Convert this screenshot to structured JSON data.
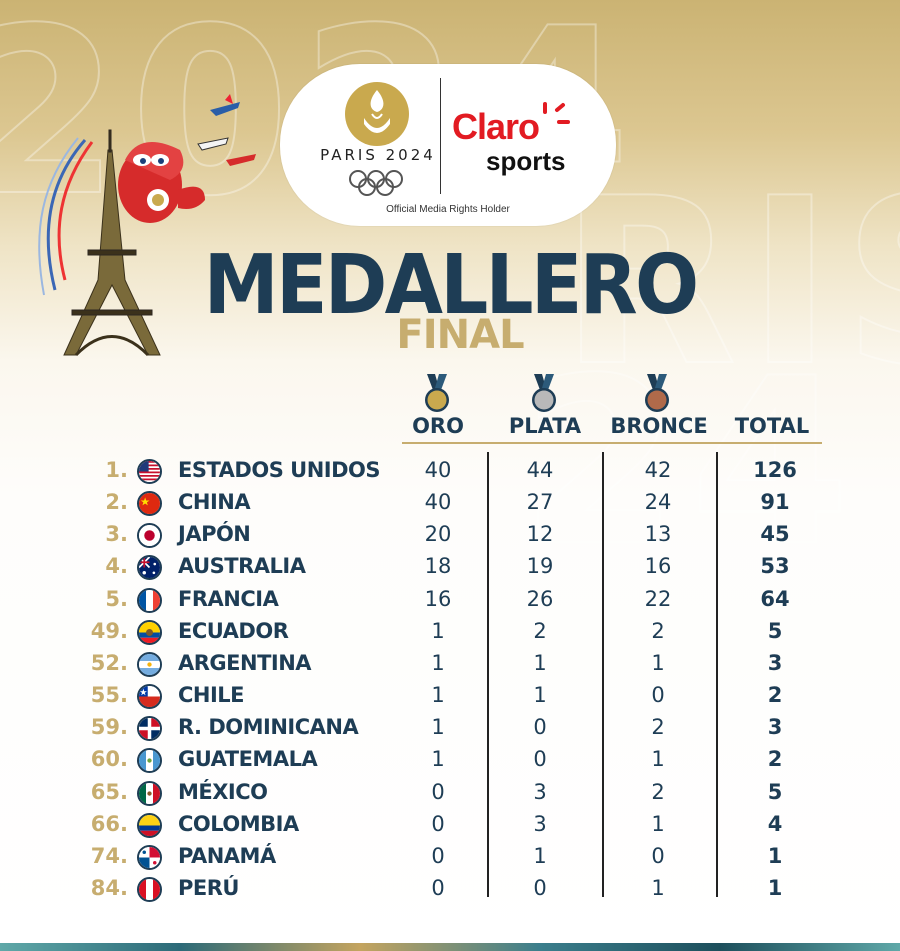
{
  "header": {
    "games_name": "PARIS 2024",
    "broadcaster_main": "Claro",
    "broadcaster_sub": "sports",
    "rights_text": "Official Media Rights Holder"
  },
  "title": "MEDALLERO",
  "subtitle": "FINAL",
  "columns": {
    "gold": "ORO",
    "silver": "PLATA",
    "bronze": "BRONCE",
    "total": "TOTAL"
  },
  "colors": {
    "navy": "#1e3d55",
    "gold_text": "#c7ad6f",
    "gold_medal": "#c9a94e",
    "silver_medal": "#b9b9b9",
    "bronze_medal": "#b06a4a"
  },
  "rows": [
    {
      "rank": "1.",
      "flag": "usa-flag-icon",
      "country": "ESTADOS UNIDOS",
      "gold": "40",
      "silver": "44",
      "bronze": "42",
      "total": "126"
    },
    {
      "rank": "2.",
      "flag": "china-flag-icon",
      "country": "CHINA",
      "gold": "40",
      "silver": "27",
      "bronze": "24",
      "total": "91"
    },
    {
      "rank": "3.",
      "flag": "japan-flag-icon",
      "country": "JAPÓN",
      "gold": "20",
      "silver": "12",
      "bronze": "13",
      "total": "45"
    },
    {
      "rank": "4.",
      "flag": "australia-flag-icon",
      "country": "AUSTRALIA",
      "gold": "18",
      "silver": "19",
      "bronze": "16",
      "total": "53"
    },
    {
      "rank": "5.",
      "flag": "france-flag-icon",
      "country": "FRANCIA",
      "gold": "16",
      "silver": "26",
      "bronze": "22",
      "total": "64"
    },
    {
      "rank": "49.",
      "flag": "ecuador-flag-icon",
      "country": "ECUADOR",
      "gold": "1",
      "silver": "2",
      "bronze": "2",
      "total": "5"
    },
    {
      "rank": "52.",
      "flag": "argentina-flag-icon",
      "country": "ARGENTINA",
      "gold": "1",
      "silver": "1",
      "bronze": "1",
      "total": "3"
    },
    {
      "rank": "55.",
      "flag": "chile-flag-icon",
      "country": "CHILE",
      "gold": "1",
      "silver": "1",
      "bronze": "0",
      "total": "2"
    },
    {
      "rank": "59.",
      "flag": "dominican-flag-icon",
      "country": "R. DOMINICANA",
      "gold": "1",
      "silver": "0",
      "bronze": "2",
      "total": "3"
    },
    {
      "rank": "60.",
      "flag": "guatemala-flag-icon",
      "country": "GUATEMALA",
      "gold": "1",
      "silver": "0",
      "bronze": "1",
      "total": "2"
    },
    {
      "rank": "65.",
      "flag": "mexico-flag-icon",
      "country": "MÉXICO",
      "gold": "0",
      "silver": "3",
      "bronze": "2",
      "total": "5"
    },
    {
      "rank": "66.",
      "flag": "colombia-flag-icon",
      "country": "COLOMBIA",
      "gold": "0",
      "silver": "3",
      "bronze": "1",
      "total": "4"
    },
    {
      "rank": "74.",
      "flag": "panama-flag-icon",
      "country": "PANAMÁ",
      "gold": "0",
      "silver": "1",
      "bronze": "0",
      "total": "1"
    },
    {
      "rank": "84.",
      "flag": "peru-flag-icon",
      "country": "PERÚ",
      "gold": "0",
      "silver": "0",
      "bronze": "1",
      "total": "1"
    }
  ]
}
